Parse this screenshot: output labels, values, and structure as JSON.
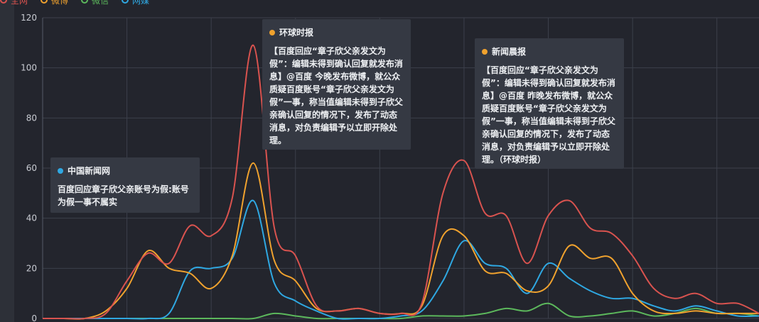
{
  "chart_data": {
    "type": "line",
    "ylim": [
      0,
      120
    ],
    "yticks": [
      0,
      20,
      40,
      60,
      80,
      100,
      120
    ],
    "grid": true,
    "legend": {
      "position": "top-left"
    },
    "x_count": 35,
    "series": [
      {
        "name": "全网",
        "color": "#d9534f",
        "values": [
          0,
          0,
          0,
          2,
          15,
          26,
          22,
          37,
          33,
          48,
          109,
          36,
          25,
          5,
          3,
          4,
          2,
          2,
          6,
          50,
          63,
          42,
          41,
          22,
          41,
          47,
          36,
          34,
          25,
          12,
          8,
          10,
          6,
          6,
          2
        ]
      },
      {
        "name": "微博",
        "color": "#f0a22e",
        "values": [
          0,
          0,
          0,
          3,
          12,
          27,
          20,
          18,
          12,
          25,
          62,
          23,
          15,
          4,
          3,
          4,
          2,
          2,
          5,
          33,
          33,
          19,
          18,
          11,
          13,
          29,
          24,
          24,
          10,
          3,
          2,
          3,
          2,
          2,
          2
        ]
      },
      {
        "name": "微信",
        "color": "#5cb85c",
        "values": [
          0,
          0,
          0,
          0,
          0,
          0,
          0,
          0,
          0,
          0,
          0,
          2,
          1,
          0,
          0,
          0,
          0,
          0,
          1,
          1,
          1,
          2,
          4,
          3,
          6,
          1,
          1,
          2,
          3,
          1,
          2,
          4,
          2,
          2,
          1
        ]
      },
      {
        "name": "网媒",
        "color": "#2fa8e2",
        "values": [
          0,
          0,
          0,
          0,
          0,
          0,
          2,
          19,
          20,
          24,
          47,
          14,
          7,
          3,
          0,
          0,
          0,
          1,
          3,
          15,
          31,
          22,
          20,
          10,
          22,
          16,
          11,
          8,
          8,
          5,
          3,
          5,
          3,
          1,
          1
        ]
      }
    ]
  },
  "legend": [
    {
      "label": "全网",
      "color": "#d9534f"
    },
    {
      "label": "微博",
      "color": "#f0a22e"
    },
    {
      "label": "微信",
      "color": "#5cb85c"
    },
    {
      "label": "网媒",
      "color": "#2fa8e2"
    }
  ],
  "annotations": {
    "a1": {
      "source": "中国新闻网",
      "dot_color": "#2fa8e2",
      "text": "百度回应章子欣父亲账号为假:账号为假一事不属实"
    },
    "a2": {
      "source": "环球时报",
      "dot_color": "#f0a22e",
      "text": "【百度回应“章子欣父亲发文为假”：编辑未得到确认回复就发布消息】@百度 今晚发布微博，就公众质疑百度账号“章子欣父亲发文为假”一事，称当值编辑未得到子欣父亲确认回复的情况下，发布了动态消息，对负责编辑予以立即开除处理。"
    },
    "a3": {
      "source": "新闻晨报",
      "dot_color": "#f0a22e",
      "text": "【百度回应“章子欣父亲发文为假”：编辑未得到确认回复就发布消息】@百度 昨晚发布微博，就公众质疑百度账号“章子欣父亲发文为假”一事，称当值编辑未得到子欣父亲确认回复的情况下，发布了动态消息，对负责编辑予以立即开除处理。（环球时报）"
    }
  }
}
